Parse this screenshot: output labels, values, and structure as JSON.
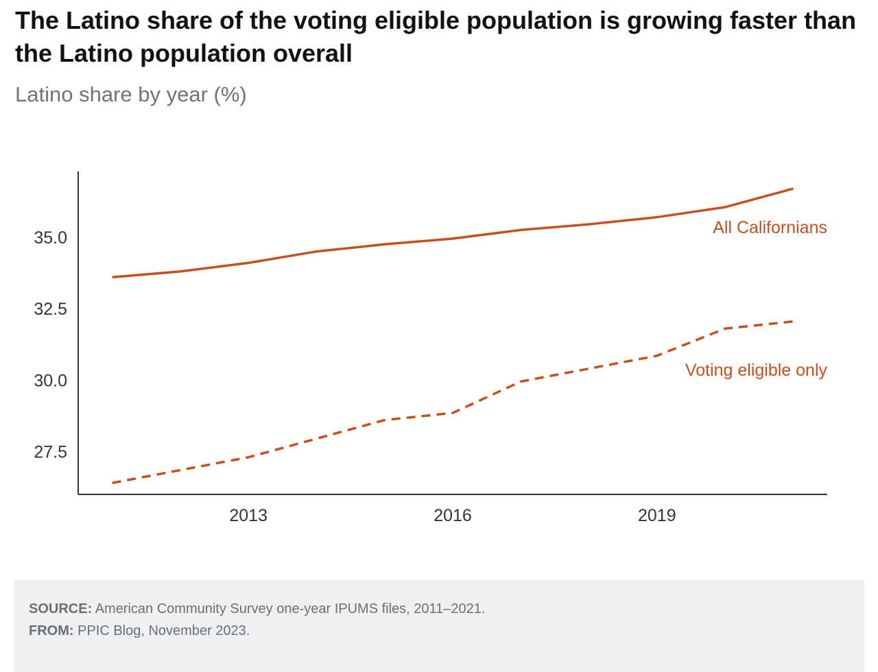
{
  "colors": {
    "series": "#c5501e",
    "axis": "#333333",
    "title": "#111111",
    "subtitle": "#6d747b",
    "footer_bg": "#eff0f2"
  },
  "chart_data": {
    "type": "line",
    "title": "The Latino share of the voting eligible population is growing faster than the Latino population overall",
    "subtitle": "Latino share by year (%)",
    "xlabel": "",
    "ylabel": "",
    "x": [
      2011,
      2012,
      2013,
      2014,
      2015,
      2016,
      2017,
      2018,
      2019,
      2020,
      2021
    ],
    "xlim": [
      2010.5,
      2021.5
    ],
    "ylim": [
      26,
      37.3
    ],
    "x_ticks": [
      2013,
      2016,
      2019
    ],
    "x_tick_labels": [
      "2013",
      "2016",
      "2019"
    ],
    "y_ticks": [
      27.5,
      30.0,
      32.5,
      35.0
    ],
    "y_tick_labels": [
      "27.5",
      "30.0",
      "32.5",
      "35.0"
    ],
    "grid": false,
    "series": [
      {
        "name": "All Californians",
        "style": "solid",
        "values": [
          33.6,
          33.8,
          34.1,
          34.5,
          34.75,
          34.95,
          35.25,
          35.45,
          35.7,
          36.05,
          36.7
        ]
      },
      {
        "name": "Voting eligible only",
        "style": "dashed",
        "values": [
          26.4,
          26.85,
          27.3,
          27.95,
          28.6,
          28.85,
          29.95,
          30.4,
          30.85,
          31.8,
          32.05
        ]
      }
    ]
  },
  "footer": {
    "source_label": "SOURCE:",
    "source_text": " American Community Survey one-year IPUMS files, 2011–2021.",
    "from_label": "FROM:",
    "from_text": " PPIC Blog, November 2023."
  }
}
